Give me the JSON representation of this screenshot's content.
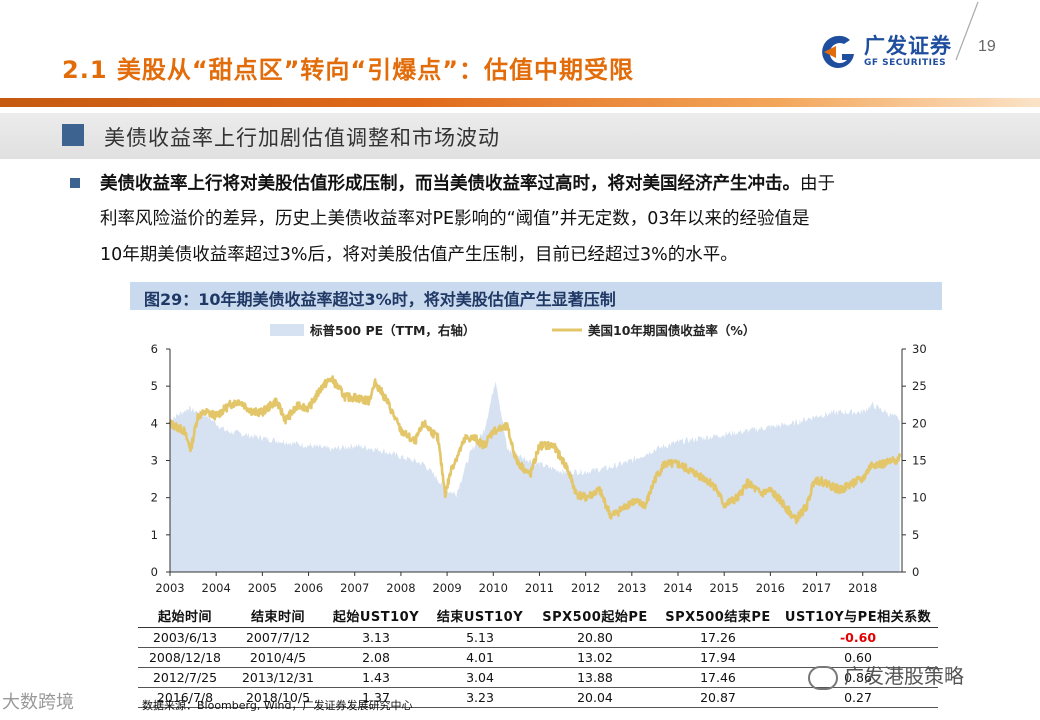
{
  "header": {
    "title": "2.1 美股从“甜点区”转向“引爆点”：估值中期受限",
    "logo_cn": "广发证券",
    "logo_en": "GF SECURITIES",
    "page_number": "19"
  },
  "section": {
    "title": "美债收益率上行加剧估值调整和市场波动"
  },
  "body": {
    "para1_bold": "美债收益率上行将对美股估值形成压制，而当美债收益率过高时，将对美国经济产生冲击。",
    "para1_rest": "由于",
    "para2": "利率风险溢价的差异，历史上美债收益率对PE影响的“阈值”并无定数，03年以来的经验值是",
    "para3": "10年期美债收益率超过3%后，将对美股估值产生压制，目前已经超过3%的水平。"
  },
  "figure": {
    "caption": "图29：10年期美债收益率超过3%时，将对美股估值产生显著压制"
  },
  "chart_data": {
    "type": "area",
    "legend": [
      {
        "name": "标普500 PE（TTM，右轴）",
        "color": "#D6E2F1"
      },
      {
        "name": "美国10年期国债收益率（%）",
        "color": "#E3C66A"
      }
    ],
    "x_ticks": [
      "2003",
      "2004",
      "2005",
      "2006",
      "2007",
      "2008",
      "2009",
      "2010",
      "2011",
      "2012",
      "2013",
      "2014",
      "2015",
      "2016",
      "2017",
      "2018"
    ],
    "left_axis": {
      "min": 0,
      "max": 6,
      "ticks": [
        "0",
        "1",
        "2",
        "3",
        "4",
        "5",
        "6"
      ]
    },
    "right_axis": {
      "min": 0,
      "max": 30,
      "ticks": [
        "0",
        "5",
        "10",
        "15",
        "20",
        "25",
        "30"
      ]
    },
    "series": [
      {
        "name": "美国10年期国债收益率（%）",
        "axis": "left",
        "x": [
          2003.0,
          2003.3,
          2003.45,
          2003.6,
          2003.8,
          2004.0,
          2004.3,
          2004.5,
          2004.8,
          2005.0,
          2005.3,
          2005.5,
          2005.8,
          2006.0,
          2006.3,
          2006.5,
          2006.8,
          2007.0,
          2007.3,
          2007.45,
          2007.7,
          2008.0,
          2008.3,
          2008.5,
          2008.8,
          2008.96,
          2009.1,
          2009.4,
          2009.6,
          2009.8,
          2010.0,
          2010.3,
          2010.5,
          2010.8,
          2011.0,
          2011.3,
          2011.6,
          2011.8,
          2012.0,
          2012.3,
          2012.55,
          2012.8,
          2013.0,
          2013.3,
          2013.5,
          2013.7,
          2014.0,
          2014.3,
          2014.6,
          2014.8,
          2015.0,
          2015.3,
          2015.5,
          2015.8,
          2016.0,
          2016.3,
          2016.55,
          2016.8,
          2016.95,
          2017.2,
          2017.5,
          2017.8,
          2018.0,
          2018.2,
          2018.45,
          2018.7,
          2018.8
        ],
        "values": [
          4.0,
          3.8,
          3.3,
          4.2,
          4.3,
          4.2,
          4.5,
          4.6,
          4.3,
          4.3,
          4.6,
          4.1,
          4.5,
          4.4,
          5.0,
          5.2,
          4.7,
          4.7,
          4.6,
          5.1,
          4.6,
          3.8,
          3.5,
          4.0,
          3.6,
          2.1,
          2.8,
          3.6,
          3.6,
          3.4,
          3.8,
          3.9,
          3.0,
          2.6,
          3.4,
          3.4,
          2.8,
          2.1,
          2.0,
          2.2,
          1.5,
          1.7,
          1.9,
          1.8,
          2.5,
          2.9,
          2.9,
          2.7,
          2.5,
          2.3,
          1.8,
          2.0,
          2.4,
          2.1,
          2.2,
          1.8,
          1.4,
          1.8,
          2.5,
          2.4,
          2.2,
          2.4,
          2.5,
          2.9,
          2.9,
          3.0,
          3.1
        ]
      },
      {
        "name": "标普500 PE（TTM，右轴）",
        "axis": "right",
        "x": [
          2003.0,
          2003.4,
          2003.8,
          2004.2,
          2004.6,
          2005.0,
          2005.5,
          2006.0,
          2006.5,
          2007.0,
          2007.5,
          2008.0,
          2008.5,
          2008.8,
          2008.95,
          2009.2,
          2009.5,
          2009.8,
          2009.95,
          2010.05,
          2010.3,
          2010.6,
          2011.0,
          2011.5,
          2012.0,
          2012.5,
          2013.0,
          2013.5,
          2014.0,
          2014.5,
          2015.0,
          2015.5,
          2016.0,
          2016.5,
          2017.0,
          2017.5,
          2018.0,
          2018.2,
          2018.5,
          2018.8
        ],
        "values": [
          20.5,
          22,
          21,
          19,
          18.5,
          18,
          17.5,
          17,
          16.5,
          17,
          16.5,
          15.5,
          14.5,
          12.5,
          11,
          10.5,
          16,
          19,
          23,
          26,
          16.5,
          15.5,
          14.5,
          13.5,
          13.5,
          14,
          15,
          16.5,
          17.5,
          18,
          18.5,
          19,
          19.5,
          20,
          21,
          21.5,
          21.5,
          22.5,
          21.5,
          20.5
        ]
      }
    ]
  },
  "table": {
    "headers": [
      "起始时间",
      "结束时间",
      "起始UST10Y",
      "结束UST10Y",
      "SPX500起始PE",
      "SPX500结束PE",
      "UST10Y与PE相关系数"
    ],
    "rows": [
      [
        "2003/6/13",
        "2007/7/12",
        "3.13",
        "5.13",
        "20.80",
        "17.26",
        "-0.60"
      ],
      [
        "2008/12/18",
        "2010/4/5",
        "2.08",
        "4.01",
        "13.02",
        "17.94",
        "0.60"
      ],
      [
        "2012/7/25",
        "2013/12/31",
        "1.43",
        "3.04",
        "13.88",
        "17.46",
        "0.86"
      ],
      [
        "2016/7/8",
        "2018/10/5",
        "1.37",
        "3.23",
        "20.04",
        "20.87",
        "0.27"
      ]
    ]
  },
  "footer": {
    "source": "数据来源：Bloomberg, Wind，广发证券发展研究中心",
    "watermark_left": "大数跨境",
    "watermark_right": "广发港股策略"
  },
  "colors": {
    "title_orange": "#E36C0A",
    "brand_blue": "#1F4E9E",
    "section_square": "#3D6391",
    "caption_band": "#C9D9EE",
    "negative_red": "#E00000"
  }
}
